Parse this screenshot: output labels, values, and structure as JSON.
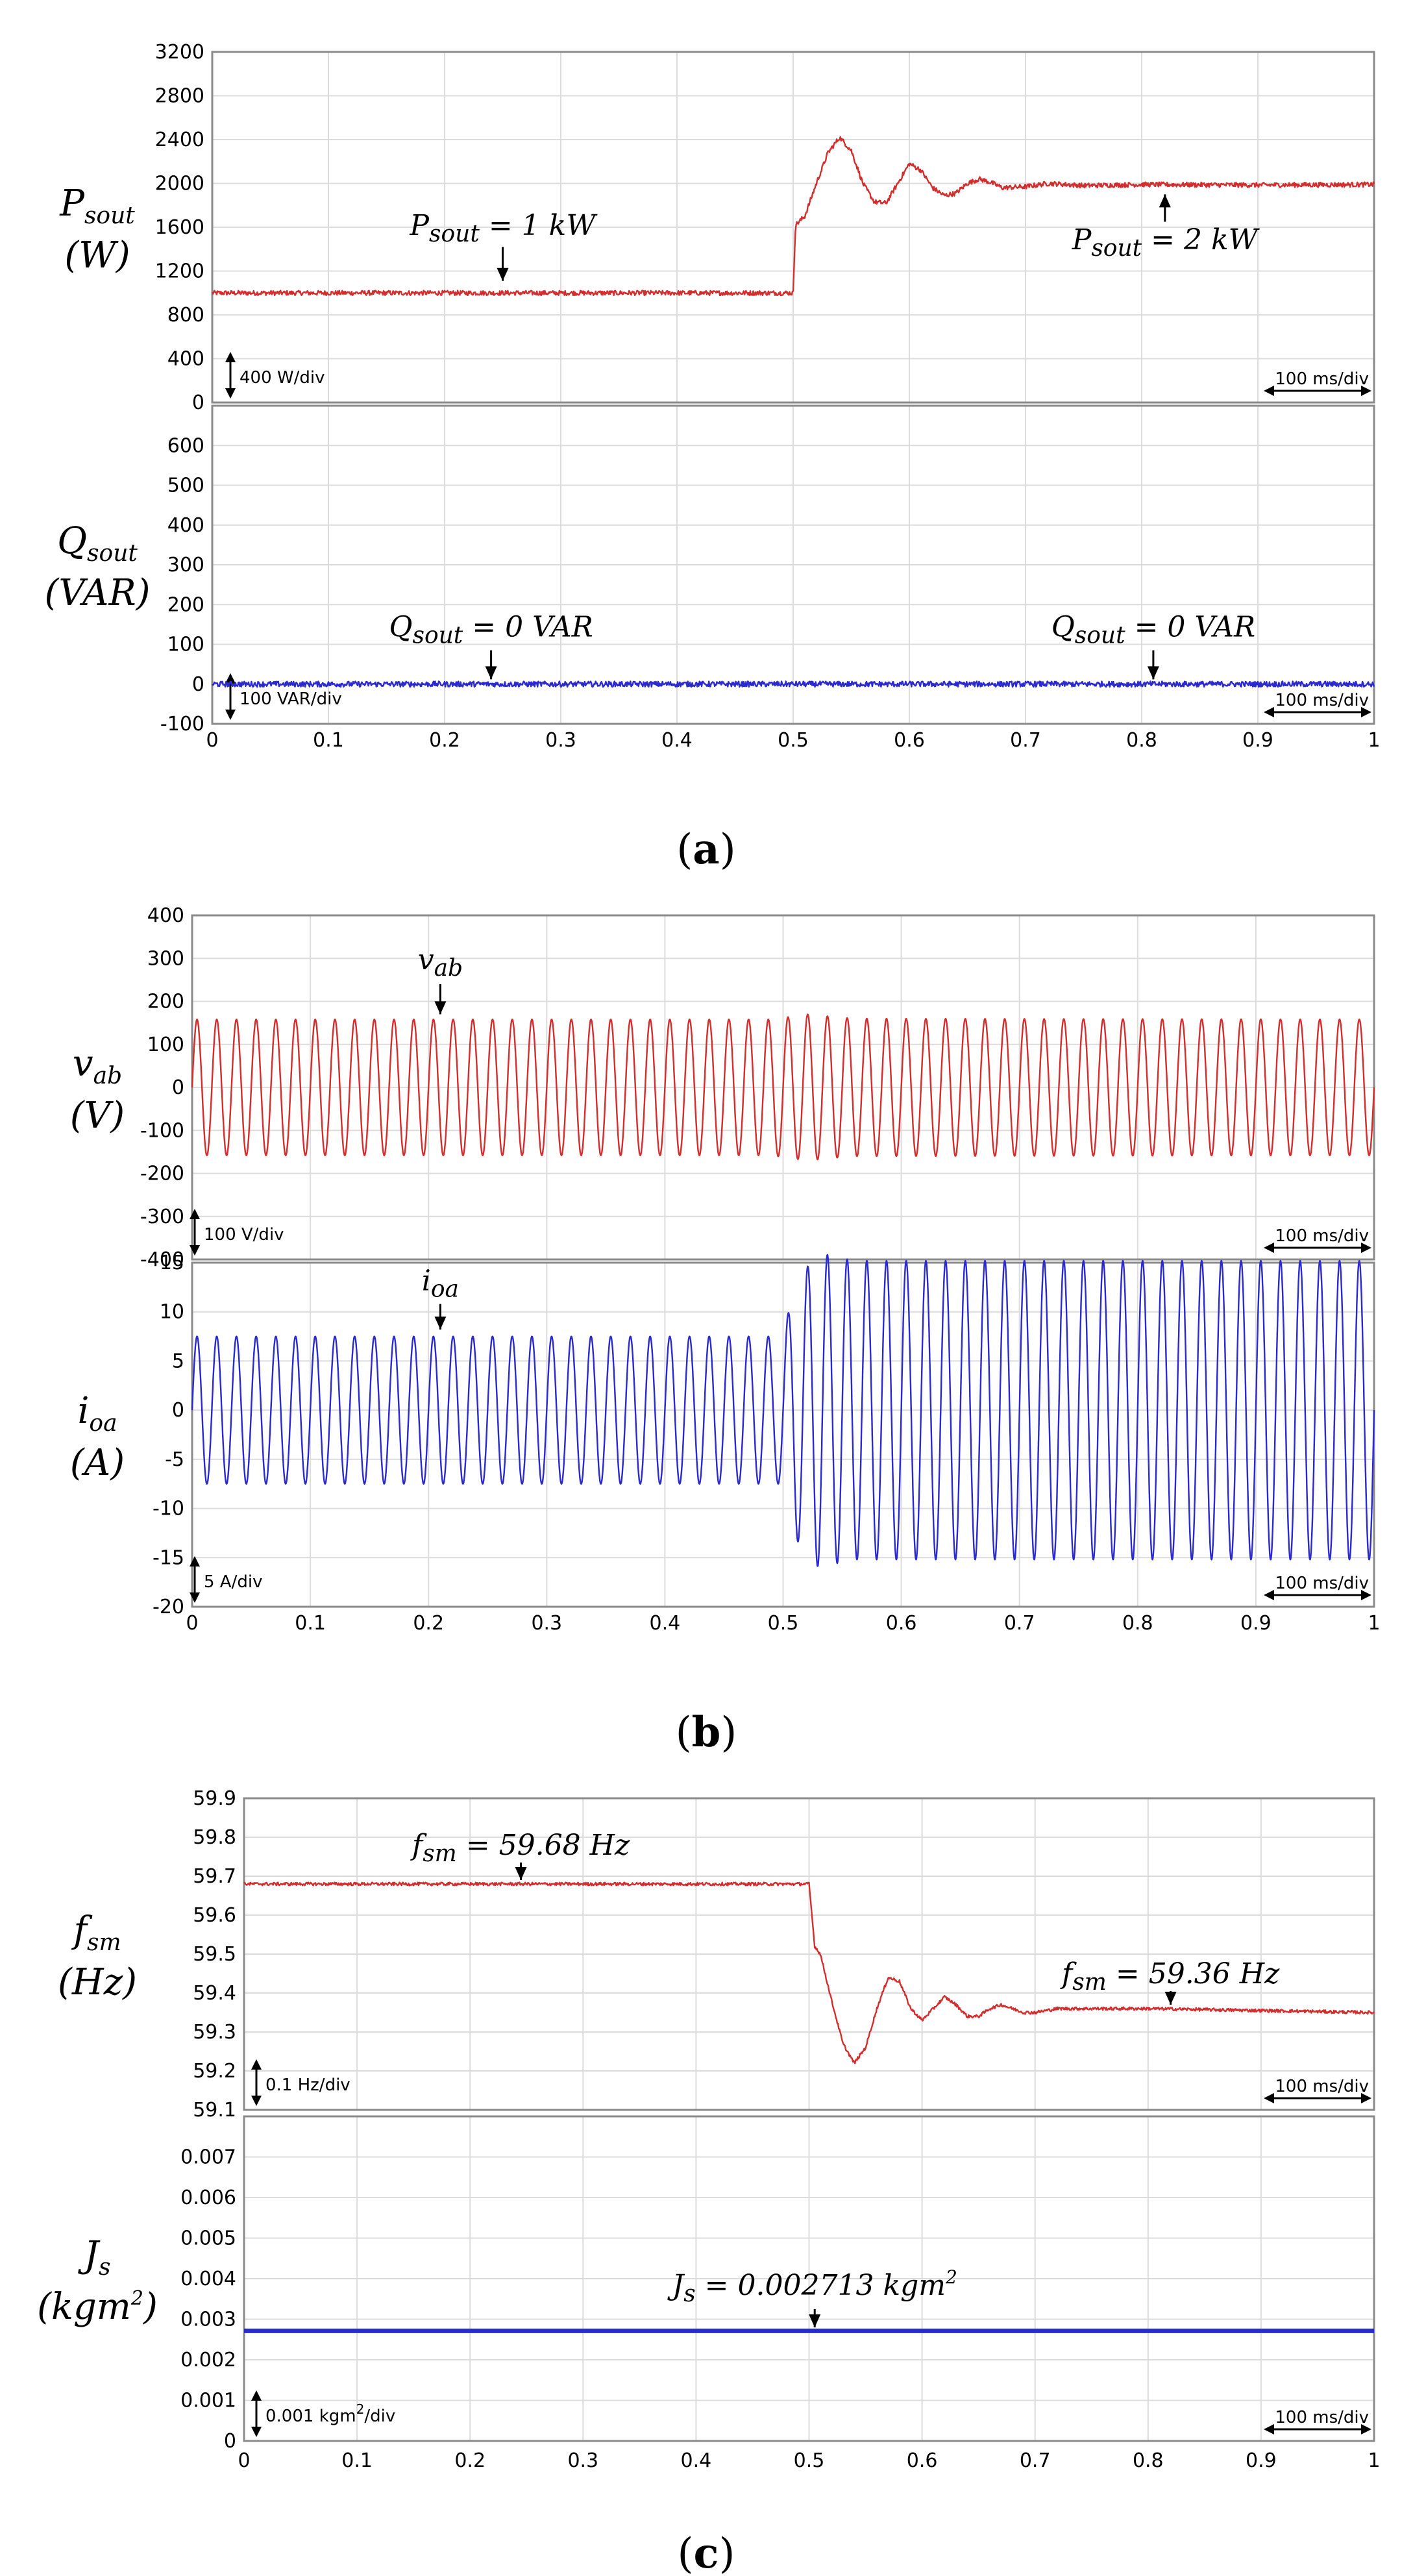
{
  "colors": {
    "red": "#d42d2d",
    "blue": "#2a2ad0",
    "frame": "#8a8a8a",
    "grid": "#dcdcdc"
  },
  "chart_data": [
    {
      "type": "line",
      "panel": "a",
      "caption_letter": "a",
      "x_tick_labels": [
        "0",
        "0.1",
        "0.2",
        "0.3",
        "0.4",
        "0.5",
        "0.6",
        "0.7",
        "0.8",
        "0.9",
        "1"
      ],
      "xlim": [
        0,
        1
      ],
      "subplots": [
        {
          "id": "Psout",
          "ylabel_main": "P",
          "ylabel_sub": "sout",
          "ylabel_unit": "(W)",
          "ylim": [
            0,
            3200
          ],
          "y_ticks": [
            0,
            400,
            800,
            1200,
            1600,
            2000,
            2400,
            2800,
            3200
          ],
          "y_tick_labels": [
            "0",
            "400",
            "800",
            "1200",
            "1600",
            "2000",
            "2400",
            "2800",
            "3200"
          ],
          "scale_text": "400 W/div",
          "time_text": "100 ms/div",
          "series": [
            {
              "name": "Psout",
              "color": "red",
              "noise": 22,
              "x": [
                0,
                0.1,
                0.2,
                0.3,
                0.4,
                0.5,
                0.502,
                0.51,
                0.52,
                0.53,
                0.54,
                0.55,
                0.56,
                0.57,
                0.58,
                0.59,
                0.6,
                0.61,
                0.62,
                0.63,
                0.64,
                0.65,
                0.66,
                0.67,
                0.68,
                0.7,
                0.72,
                0.75,
                0.8,
                0.9,
                1.0
              ],
              "y": [
                1000,
                1000,
                1000,
                1000,
                1000,
                1000,
                1620,
                1700,
                2000,
                2280,
                2420,
                2300,
                2000,
                1830,
                1820,
                2000,
                2180,
                2120,
                1960,
                1890,
                1910,
                2000,
                2040,
                2010,
                1960,
                1970,
                2000,
                1980,
                1990,
                1985,
                1990
              ]
            }
          ],
          "callouts": [
            {
              "main": "P",
              "sub": "sout",
              "rest": " = 1 kW",
              "arrow_x": 0.25,
              "arrow_dir": "down",
              "arrow_from": 1420,
              "arrow_to": 1110,
              "text_y": 1530
            },
            {
              "main": "P",
              "sub": "sout",
              "rest": " = 2 kW",
              "arrow_x": 0.82,
              "arrow_dir": "up",
              "arrow_from": 1650,
              "arrow_to": 1900,
              "text_y": 1400
            }
          ]
        },
        {
          "id": "Qsout",
          "ylabel_main": "Q",
          "ylabel_sub": "sout",
          "ylabel_unit": "(VAR)",
          "ylim": [
            -100,
            700
          ],
          "y_ticks": [
            -100,
            0,
            100,
            200,
            300,
            400,
            500,
            600
          ],
          "y_tick_labels": [
            "-100",
            "0",
            "100",
            "200",
            "300",
            "400",
            "500",
            "600"
          ],
          "scale_text": "100 VAR/div",
          "time_text": "100 ms/div",
          "series": [
            {
              "name": "Qsout",
              "color": "blue",
              "noise": 7,
              "x": [
                0,
                1
              ],
              "y": [
                0,
                0
              ]
            }
          ],
          "callouts": [
            {
              "main": "Q",
              "sub": "sout",
              "rest": " = 0 VAR",
              "arrow_x": 0.24,
              "arrow_dir": "down",
              "arrow_from": 85,
              "arrow_to": 12,
              "text_y": 120
            },
            {
              "main": "Q",
              "sub": "sout",
              "rest": " = 0 VAR",
              "arrow_x": 0.81,
              "arrow_dir": "down",
              "arrow_from": 85,
              "arrow_to": 12,
              "text_y": 120
            }
          ]
        }
      ]
    },
    {
      "type": "line",
      "panel": "b",
      "caption_letter": "b",
      "x_tick_labels": [
        "0",
        "0.1",
        "0.2",
        "0.3",
        "0.4",
        "0.5",
        "0.6",
        "0.7",
        "0.8",
        "0.9",
        "1"
      ],
      "xlim": [
        0,
        1
      ],
      "subplots": [
        {
          "id": "vab",
          "ylabel_main": "v",
          "ylabel_sub": "ab",
          "ylabel_unit": "(V)",
          "ylim": [
            -400,
            400
          ],
          "y_ticks": [
            -400,
            -300,
            -200,
            -100,
            0,
            100,
            200,
            300,
            400
          ],
          "y_tick_labels": [
            "-400",
            "-300",
            "-200",
            "-100",
            "0",
            "100",
            "200",
            "300",
            "400"
          ],
          "scale_text": "100 V/div",
          "time_text": "100 ms/div",
          "series": [
            {
              "name": "vab",
              "color": "red",
              "waveform": "sine",
              "freq": 60,
              "amp_x": [
                0,
                0.49,
                0.52,
                0.56,
                1.0
              ],
              "amp_y": [
                158,
                158,
                170,
                160,
                158
              ]
            }
          ],
          "callouts": [
            {
              "main": "v",
              "sub": "ab",
              "rest": "",
              "arrow_x": 0.21,
              "arrow_dir": "down",
              "arrow_from": 240,
              "arrow_to": 170,
              "text_y": 275
            }
          ]
        },
        {
          "id": "ioa",
          "ylabel_main": "i",
          "ylabel_sub": "oa",
          "ylabel_unit": "(A)",
          "ylim": [
            -20,
            15
          ],
          "y_ticks": [
            -20,
            -15,
            -10,
            -5,
            0,
            5,
            10,
            15
          ],
          "y_tick_labels": [
            "-20",
            "-15",
            "-10",
            "-5",
            "0",
            "5",
            "10",
            "15"
          ],
          "scale_text": "5 A/div",
          "time_text": "100 ms/div",
          "series": [
            {
              "name": "ioa",
              "color": "blue",
              "waveform": "sine",
              "freq": 60,
              "amp_x": [
                0,
                0.5,
                0.51,
                0.53,
                0.56,
                1.0
              ],
              "amp_y": [
                7.5,
                7.5,
                13,
                16,
                15.2,
                15.2
              ]
            }
          ],
          "callouts": [
            {
              "main": "i",
              "sub": "oa",
              "rest": "",
              "arrow_x": 0.21,
              "arrow_dir": "down",
              "arrow_from": 10.8,
              "arrow_to": 8.2,
              "text_y": 12.2
            }
          ]
        }
      ]
    },
    {
      "type": "line",
      "panel": "c",
      "caption_letter": "c",
      "x_tick_labels": [
        "0",
        "0.1",
        "0.2",
        "0.3",
        "0.4",
        "0.5",
        "0.6",
        "0.7",
        "0.8",
        "0.9",
        "1"
      ],
      "xlim": [
        0,
        1
      ],
      "subplots": [
        {
          "id": "fsm",
          "ylabel_main": "f",
          "ylabel_sub": "sm",
          "ylabel_unit": "(Hz)",
          "ylim": [
            59.1,
            59.9
          ],
          "y_ticks": [
            59.1,
            59.2,
            59.3,
            59.4,
            59.5,
            59.6,
            59.7,
            59.8,
            59.9
          ],
          "y_tick_labels": [
            "59.1",
            "59.2",
            "59.3",
            "59.4",
            "59.5",
            "59.6",
            "59.7",
            "59.8",
            "59.9"
          ],
          "scale_text": "0.1 Hz/div",
          "time_text": "100 ms/div",
          "series": [
            {
              "name": "fsm",
              "color": "red",
              "noise": 0.004,
              "x": [
                0,
                0.1,
                0.2,
                0.3,
                0.4,
                0.5,
                0.505,
                0.51,
                0.52,
                0.53,
                0.54,
                0.55,
                0.56,
                0.57,
                0.58,
                0.59,
                0.6,
                0.61,
                0.62,
                0.63,
                0.64,
                0.65,
                0.66,
                0.67,
                0.68,
                0.69,
                0.7,
                0.72,
                0.75,
                0.8,
                0.9,
                1.0
              ],
              "y": [
                59.68,
                59.68,
                59.68,
                59.68,
                59.68,
                59.68,
                59.52,
                59.5,
                59.38,
                59.27,
                59.22,
                59.26,
                59.36,
                59.44,
                59.43,
                59.36,
                59.33,
                59.36,
                59.39,
                59.37,
                59.34,
                59.34,
                59.36,
                59.37,
                59.36,
                59.35,
                59.35,
                59.36,
                59.36,
                59.36,
                59.355,
                59.35
              ]
            }
          ],
          "callouts": [
            {
              "main": "f",
              "sub": "sm",
              "rest": " = 59.68 Hz",
              "arrow_x": 0.245,
              "arrow_dir": "down",
              "arrow_from": 59.735,
              "arrow_to": 59.69,
              "text_y": 59.755
            },
            {
              "main": "f",
              "sub": "sm",
              "rest": " = 59.36 Hz",
              "arrow_x": 0.82,
              "arrow_dir": "down",
              "arrow_from": 59.405,
              "arrow_to": 59.37,
              "text_y": 59.425
            }
          ]
        },
        {
          "id": "Js",
          "ylabel_main": "J",
          "ylabel_sub": "s",
          "ylabel_unit": "(kgm",
          "ylabel_unit_sup": "2",
          "ylabel_unit_close": ")",
          "ylim": [
            0,
            0.008
          ],
          "y_ticks": [
            0,
            0.001,
            0.002,
            0.003,
            0.004,
            0.005,
            0.006,
            0.007
          ],
          "y_tick_labels": [
            "0",
            "0.001",
            "0.002",
            "0.003",
            "0.004",
            "0.005",
            "0.006",
            "0.007"
          ],
          "scale_text": "0.001 kgm",
          "scale_text_sup": "2",
          "scale_text_tail": "/div",
          "time_text": "100 ms/div",
          "series": [
            {
              "name": "Js",
              "color": "blue",
              "noise": 0,
              "width": 7,
              "x": [
                0,
                1
              ],
              "y": [
                0.002713,
                0.002713
              ]
            }
          ],
          "callouts": [
            {
              "main": "J",
              "sub": "s",
              "rest": " = 0.002713 kgm",
              "rest_sup": "2",
              "arrow_x": 0.505,
              "arrow_dir": "down",
              "arrow_from": 0.00325,
              "arrow_to": 0.0028,
              "text_y": 0.0036
            }
          ]
        }
      ]
    }
  ]
}
